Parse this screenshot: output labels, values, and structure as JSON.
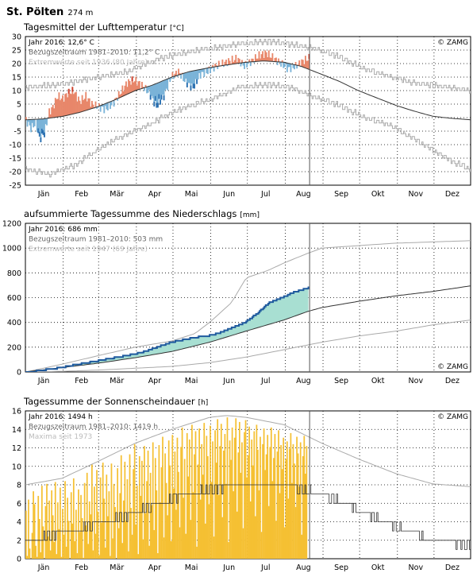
{
  "header": {
    "station": "St. Pölten",
    "elevation": "274 m"
  },
  "months": [
    "Jän",
    "Feb",
    "Mär",
    "Apr",
    "Mai",
    "Jun",
    "Jul",
    "Aug",
    "Sep",
    "Okt",
    "Nov",
    "Dez"
  ],
  "logo": "© ZAMG",
  "colors": {
    "warm": "#e8876a",
    "warm_dark": "#cc3d2a",
    "cold": "#7ab3d8",
    "cold_dark": "#2a6fb0",
    "precip_fill": "#a8dfd2",
    "precip_line": "#1f5a9e",
    "sun": "#f5c033",
    "sun_edge": "#e0a500",
    "ref_line": "#333333",
    "extreme_line": "#aaaaaa"
  },
  "chart_data": [
    {
      "type": "area",
      "title": "Tagesmittel der Lufttemperatur",
      "unit": "°C",
      "legend": [
        "Jahr 2016: 12,6° C",
        "Bezugszeitraum 1981–2010: 11,2° C",
        "Extremwerte seit 1936 (80 Jahre)"
      ],
      "ylim": [
        -25,
        30
      ],
      "yticks": [
        -25,
        -20,
        -15,
        -10,
        -5,
        0,
        5,
        10,
        15,
        20,
        25,
        30
      ],
      "grid": true,
      "x_unit": "day of year 2016",
      "cutoff_day": 233,
      "reference_1981_2010": {
        "x": [
          1,
          15,
          32,
          46,
          60,
          74,
          91,
          105,
          121,
          135,
          152,
          166,
          182,
          196,
          213,
          227,
          244,
          258,
          274,
          288,
          305,
          319,
          335,
          349,
          366
        ],
        "y": [
          -0.8,
          -0.5,
          0.5,
          2,
          4,
          6.5,
          10,
          12,
          15,
          17,
          18.5,
          19.5,
          20.5,
          21,
          20.5,
          19,
          16,
          13.5,
          10,
          7.5,
          4.5,
          2.5,
          0.5,
          -0.2,
          -0.8
        ]
      },
      "extreme_max": {
        "x": [
          1,
          20,
          40,
          60,
          75,
          90,
          105,
          121,
          140,
          160,
          175,
          190,
          205,
          220,
          235,
          250,
          265,
          280,
          300,
          320,
          335,
          350,
          366
        ],
        "y": [
          11,
          12,
          13,
          15,
          16,
          18,
          21,
          23,
          25,
          26,
          27,
          28,
          28,
          27,
          26,
          24,
          21,
          18,
          15,
          13,
          12,
          11,
          10
        ]
      },
      "extreme_min": {
        "x": [
          1,
          20,
          40,
          60,
          75,
          90,
          105,
          121,
          140,
          160,
          175,
          190,
          205,
          220,
          235,
          250,
          265,
          280,
          300,
          320,
          335,
          350,
          366
        ],
        "y": [
          -19,
          -21,
          -18,
          -12,
          -8,
          -5,
          -2,
          2,
          5,
          8,
          11,
          12,
          12,
          11,
          8,
          6,
          3,
          0,
          -3,
          -8,
          -12,
          -16,
          -19
        ]
      },
      "year_2016": {
        "x": [
          1,
          5,
          9,
          12,
          16,
          20,
          23,
          27,
          31,
          35,
          40,
          45,
          50,
          55,
          60,
          66,
          72,
          78,
          84,
          90,
          96,
          102,
          108,
          114,
          120,
          126,
          132,
          138,
          144,
          150,
          156,
          162,
          168,
          174,
          180,
          186,
          192,
          198,
          204,
          210,
          216,
          222,
          228,
          233
        ],
        "y": [
          -1,
          -4,
          -2,
          -8,
          -6,
          2,
          4,
          8,
          7,
          9,
          10,
          6,
          8,
          5,
          4,
          3,
          5,
          9,
          13,
          14,
          12,
          9,
          4,
          8,
          15,
          17,
          13,
          11,
          16,
          17,
          19,
          20,
          21,
          22,
          19,
          21,
          23,
          24,
          22,
          20,
          18,
          19,
          21,
          22
        ]
      }
    },
    {
      "type": "area",
      "title": "aufsummierte Tagessumme des Niederschlags",
      "unit": "mm",
      "legend": [
        "Jahr 2016: 686 mm",
        "Bezugszeitraum 1981–2010: 503 mm",
        "Extremwerte seit 1947 (69 Jahre)"
      ],
      "ylim": [
        0,
        1200
      ],
      "yticks": [
        0,
        200,
        400,
        600,
        800,
        1000,
        1200
      ],
      "grid": true,
      "x_unit": "day of year 2016",
      "cutoff_day": 233,
      "reference_1981_2010": {
        "x": [
          1,
          31,
          60,
          91,
          121,
          152,
          182,
          213,
          233,
          244,
          274,
          305,
          335,
          366
        ],
        "y": [
          0,
          35,
          70,
          115,
          165,
          240,
          330,
          420,
          490,
          520,
          570,
          615,
          650,
          695
        ]
      },
      "extreme_max": {
        "x": [
          1,
          30,
          60,
          91,
          121,
          140,
          152,
          170,
          182,
          200,
          213,
          233,
          244,
          274,
          305,
          335,
          366
        ],
        "y": [
          0,
          60,
          130,
          200,
          250,
          310,
          400,
          560,
          760,
          820,
          880,
          960,
          1000,
          1020,
          1040,
          1050,
          1060
        ]
      },
      "extreme_min": {
        "x": [
          1,
          31,
          60,
          91,
          121,
          152,
          182,
          213,
          244,
          274,
          305,
          335,
          366
        ],
        "y": [
          0,
          5,
          15,
          30,
          45,
          75,
          120,
          180,
          240,
          290,
          330,
          380,
          420
        ]
      },
      "year_2016": {
        "x": [
          1,
          15,
          30,
          45,
          60,
          70,
          80,
          90,
          100,
          110,
          120,
          130,
          140,
          150,
          160,
          170,
          180,
          190,
          200,
          210,
          220,
          233
        ],
        "y": [
          0,
          20,
          40,
          70,
          95,
          115,
          130,
          150,
          175,
          210,
          245,
          265,
          285,
          295,
          320,
          360,
          400,
          470,
          560,
          600,
          645,
          686
        ]
      }
    },
    {
      "type": "bar",
      "title": "Tagessumme der Sonnenscheindauer",
      "unit": "h",
      "legend": [
        "Jahr 2016: 1494 h",
        "Bezugszeitraum 1981–2010: 1419 h",
        "Maxima seit 1973"
      ],
      "ylim": [
        0,
        16
      ],
      "yticks": [
        0,
        2,
        4,
        6,
        8,
        10,
        12,
        14,
        16
      ],
      "grid": true,
      "x_unit": "day of year 2016",
      "cutoff_day": 233,
      "reference_1981_2010": {
        "x": [
          1,
          31,
          60,
          91,
          121,
          152,
          170,
          182,
          213,
          244,
          274,
          305,
          335,
          366
        ],
        "y": [
          1.8,
          2.8,
          3.8,
          5,
          6.5,
          7.5,
          7.8,
          8,
          8,
          7,
          5.2,
          3.5,
          2,
          1.5
        ]
      },
      "extreme_max": {
        "x": [
          1,
          31,
          60,
          91,
          121,
          152,
          166,
          182,
          213,
          244,
          274,
          305,
          335,
          366
        ],
        "y": [
          8,
          8.7,
          10.5,
          12.5,
          14,
          15.3,
          15.5,
          15.3,
          14.5,
          12.5,
          10.8,
          9.2,
          8.1,
          7.8
        ]
      },
      "year_2016_daily": [
        5.2,
        0.3,
        6.4,
        1.1,
        0,
        2.8,
        7.3,
        5.9,
        1.4,
        0.2,
        6.8,
        4.3,
        0.7,
        7.9,
        3.5,
        0,
        5.7,
        8.1,
        2.4,
        6.3,
        0.9,
        7.4,
        4.7,
        1.8,
        8.3,
        0.5,
        6.1,
        3.2,
        7.7,
        0.2,
        5.4,
        2.6,
        8.4,
        1.3,
        6.6,
        4.1,
        0,
        7.2,
        3.8,
        8.7,
        1.9,
        5.3,
        0.6,
        7.5,
        2.9,
        6.9,
        4.4,
        0.1,
        8.2,
        3.6,
        9.3,
        1.6,
        6.2,
        4.8,
        10.2,
        0.9,
        7.8,
        2.7,
        9.6,
        5.1,
        0.4,
        8.8,
        3.9,
        10.4,
        6.5,
        1.2,
        9.1,
        4.6,
        7.3,
        0.3,
        10.3,
        2.2,
        8.1,
        5.6,
        0,
        9.8,
        3.3,
        7.1,
        11.2,
        1.7,
        6.3,
        10.5,
        4.1,
        8.6,
        0.8,
        11.3,
        5.5,
        2.6,
        9.7,
        12.4,
        3.7,
        7.9,
        0.5,
        11.1,
        6.8,
        10.6,
        2.1,
        12.2,
        4.9,
        8.4,
        11.7,
        1.4,
        9.3,
        5.8,
        12.6,
        3.1,
        10.9,
        7.4,
        0.6,
        12.3,
        6.1,
        9.9,
        13.2,
        2.3,
        11.4,
        8.2,
        4.7,
        12.8,
        10.1,
        1.9,
        13.4,
        7.6,
        11.6,
        5.3,
        13.1,
        9.4,
        3.4,
        12.1,
        14.2,
        6.6,
        10.8,
        2.7,
        13.6,
        8.9,
        12.9,
        4.2,
        14.5,
        7.2,
        11.3,
        13.8,
        1.3,
        10.2,
        14.1,
        6.4,
        12.4,
        9.1,
        14.7,
        3.8,
        13.3,
        11.1,
        5.9,
        14.4,
        8.3,
        12.7,
        2.4,
        13.9,
        10.4,
        15.1,
        6.9,
        12.2,
        14.6,
        4.5,
        11.7,
        13.5,
        8.1,
        15.3,
        1.8,
        12.8,
        10.7,
        14.2,
        7.3,
        13.1,
        15.2,
        5.1,
        11.5,
        14.8,
        9.3,
        12.6,
        3.3,
        13.7,
        15,
        8.8,
        11.2,
        14.3,
        6.2,
        12.9,
        10.1,
        13.8,
        4.6,
        14.5,
        11.8,
        7.4,
        13.2,
        2.9,
        12.4,
        14.1,
        9.6,
        11.3,
        13.4,
        5.7,
        12.1,
        14.2,
        8.4,
        10.9,
        13.5,
        4.1,
        11.6,
        13.9,
        7.1,
        12.3,
        9.7,
        13.1,
        3.4,
        10.8,
        12.7,
        6.5,
        11.9,
        13.6,
        8.2,
        12.4,
        10.3,
        5.6,
        13.2,
        11.4,
        7.8,
        12.6,
        2.6,
        11.1,
        13.3,
        9.2,
        12.2
      ]
    }
  ]
}
